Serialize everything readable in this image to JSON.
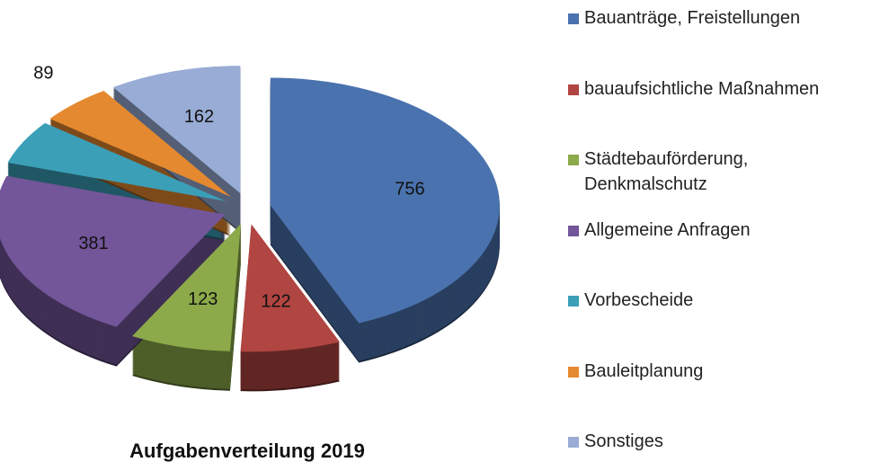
{
  "chart_data": {
    "type": "pie",
    "title": "Aufgabenverteilung 2019",
    "categories": [
      "Bauanträge, Freistellungen",
      "bauaufsichtliche Maßnahmen",
      "Städtebauförderung, Denkmalschutz",
      "Allgemeine Anfragen",
      "Vorbescheide",
      "Bauleitplanung",
      "Sonstiges"
    ],
    "values": [
      756,
      122,
      123,
      381,
      97,
      89,
      162
    ],
    "colors": [
      "#4a72ae",
      "#b04542",
      "#8caa4a",
      "#73559a",
      "#3b9fb8",
      "#e4892f",
      "#98acd5"
    ],
    "legend": "right"
  }
}
